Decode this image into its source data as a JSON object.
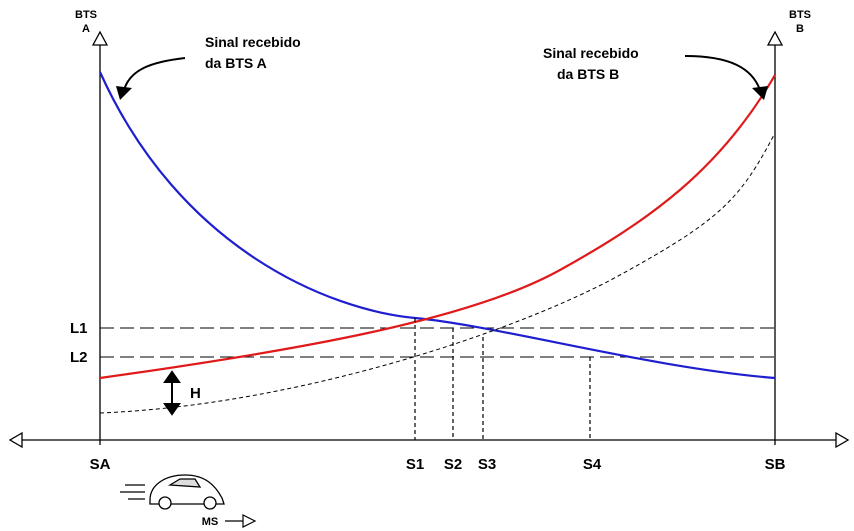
{
  "bts_a": {
    "label": [
      "BTS",
      "A"
    ]
  },
  "bts_b": {
    "label": [
      "BTS",
      "B"
    ]
  },
  "signal_a": [
    "Sinal recebido",
    "da BTS A"
  ],
  "signal_b": [
    "Sinal recebido",
    "da BTS B"
  ],
  "levels": [
    "L1",
    "L2"
  ],
  "hysteresis": "H",
  "points": [
    "SA",
    "S1",
    "S2",
    "S3",
    "S4",
    "SB"
  ],
  "mobile": "MS"
}
